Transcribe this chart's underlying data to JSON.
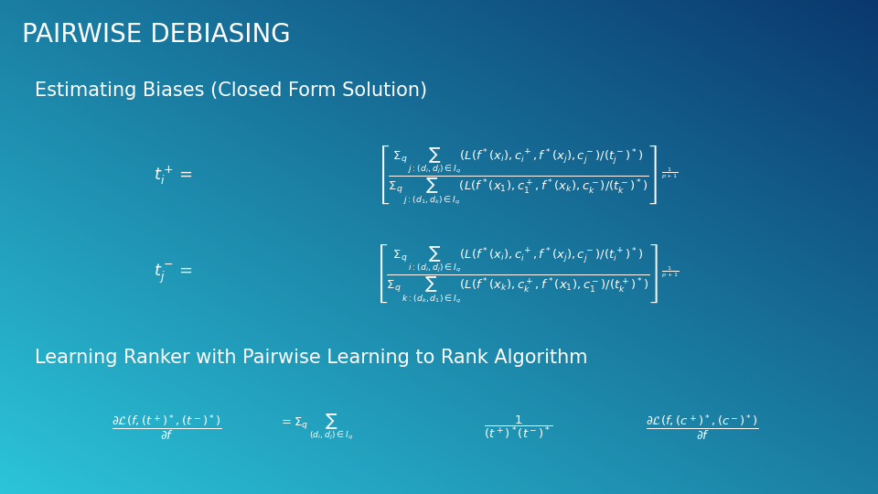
{
  "title": "PAIRWISE DEBIASING",
  "subtitle1": "Estimating Biases (Closed Form Solution)",
  "subtitle2": "Learning Ranker with Pairwise Learning to Rank Algorithm",
  "bg_color_tl": "#2bc4d8",
  "bg_color_br": "#0a3a6e",
  "text_color": "#ffffff",
  "title_fontsize": 20,
  "subtitle_fontsize": 15,
  "formula_fontsize": 9.5,
  "lhs_fontsize": 13
}
